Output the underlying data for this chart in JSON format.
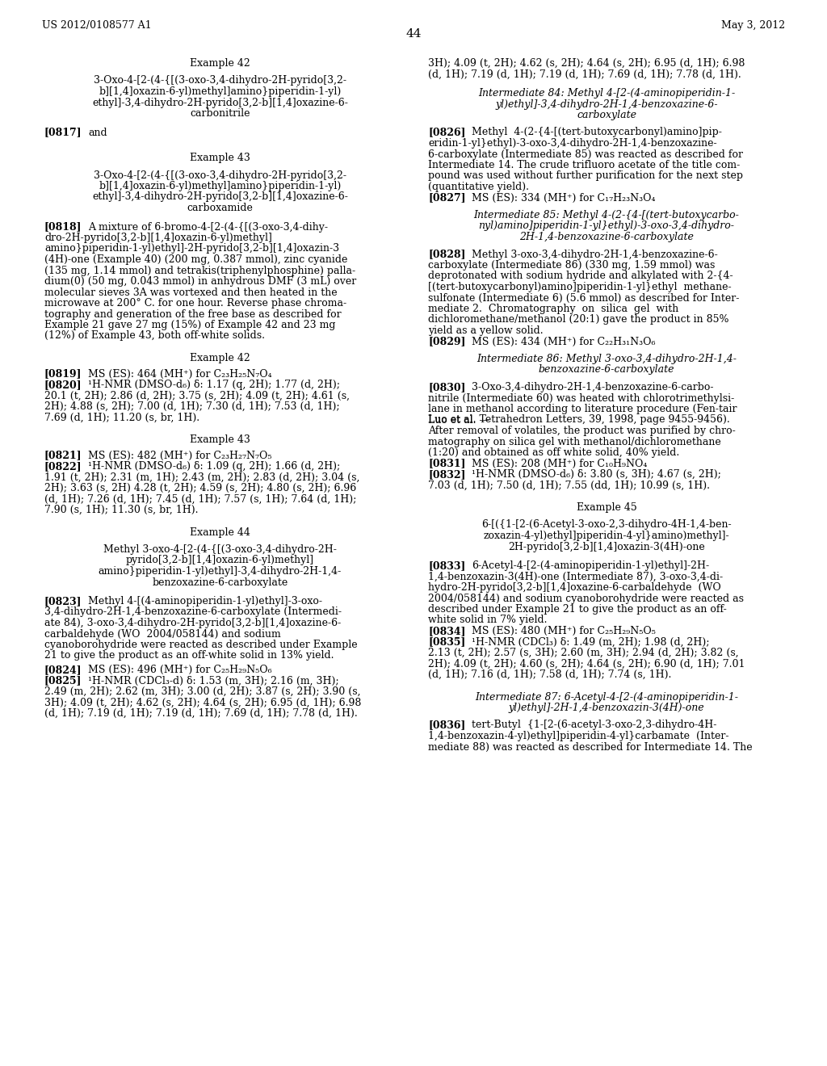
{
  "background_color": "#ffffff",
  "header_left": "US 2012/0108577 A1",
  "header_right": "May 3, 2012",
  "page_number": "44"
}
